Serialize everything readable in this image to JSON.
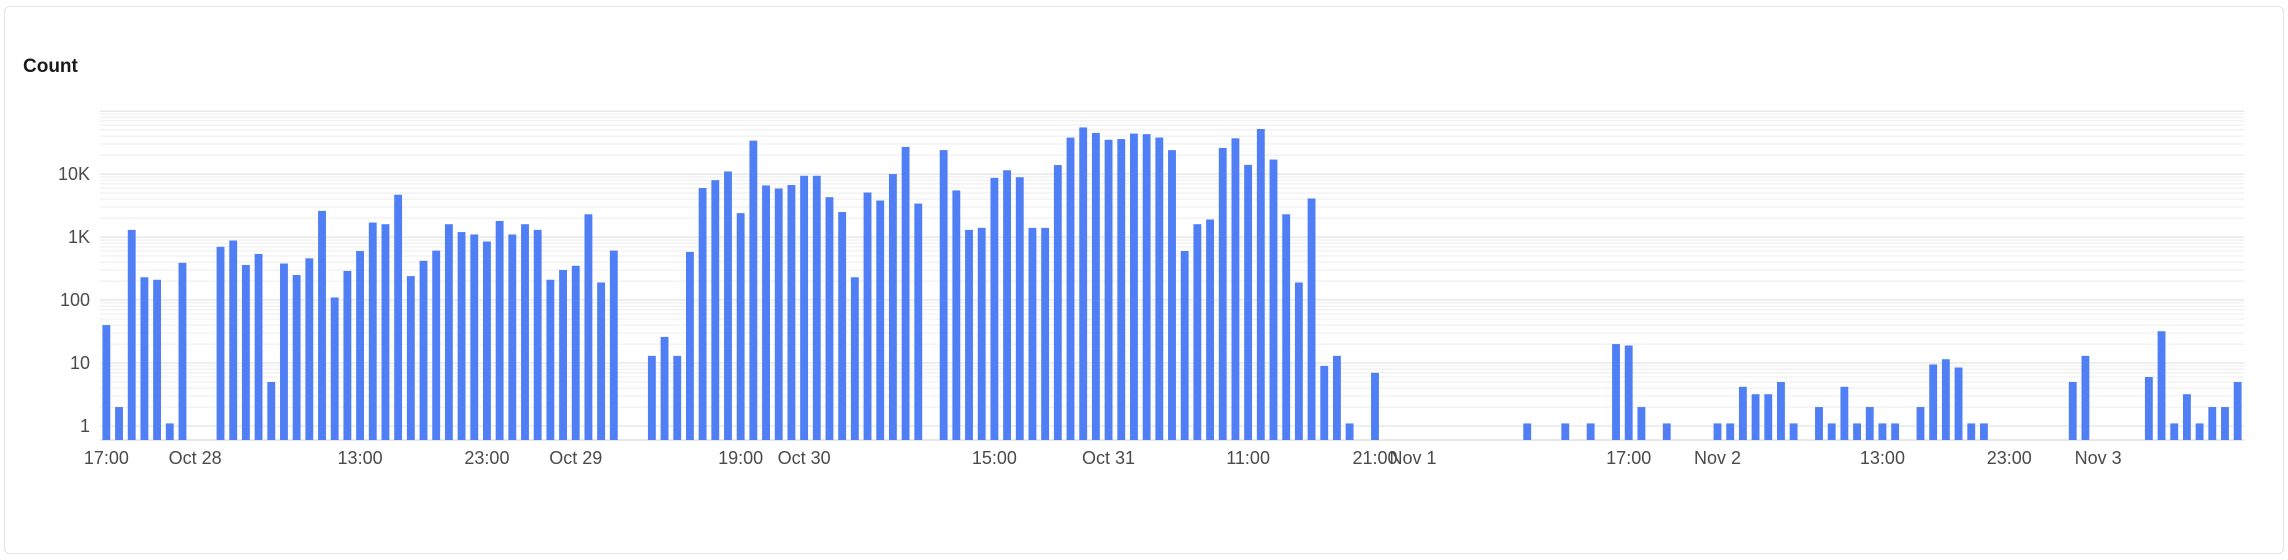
{
  "title": "Count",
  "chart_data": {
    "type": "bar",
    "title": "Count",
    "yscale": "log",
    "ylim": [
      0.6,
      150000
    ],
    "grid": true,
    "color": "#4f7ef5",
    "y_ticks": [
      {
        "value": 1,
        "label": "1"
      },
      {
        "value": 10,
        "label": "10"
      },
      {
        "value": 100,
        "label": "100"
      },
      {
        "value": 1000,
        "label": "1K"
      },
      {
        "value": 10000,
        "label": "10K"
      }
    ],
    "x_tick_labels": [
      {
        "label": "17:00",
        "at": 0
      },
      {
        "label": "Oct 28",
        "at": 7
      },
      {
        "label": "13:00",
        "at": 20
      },
      {
        "label": "23:00",
        "at": 30
      },
      {
        "label": "Oct 29",
        "at": 37
      },
      {
        "label": "19:00",
        "at": 50
      },
      {
        "label": "Oct 30",
        "at": 55
      },
      {
        "label": "15:00",
        "at": 70
      },
      {
        "label": "Oct 31",
        "at": 79
      },
      {
        "label": "11:00",
        "at": 90
      },
      {
        "label": "21:00",
        "at": 100
      },
      {
        "label": "Nov 1",
        "at": 103
      },
      {
        "label": "17:00",
        "at": 120
      },
      {
        "label": "Nov 2",
        "at": 127
      },
      {
        "label": "13:00",
        "at": 140
      },
      {
        "label": "23:00",
        "at": 150
      },
      {
        "label": "Nov 3",
        "at": 157
      }
    ],
    "values": [
      40,
      2,
      1300,
      230,
      210,
      1.1,
      390,
      0,
      0,
      700,
      880,
      360,
      540,
      5,
      380,
      250,
      460,
      2600,
      110,
      290,
      600,
      1700,
      1600,
      4700,
      240,
      420,
      610,
      1600,
      1200,
      1100,
      850,
      1800,
      1100,
      1600,
      1300,
      210,
      300,
      350,
      2300,
      190,
      610,
      0,
      0,
      13,
      26,
      13,
      580,
      6000,
      8000,
      11000,
      2400,
      34000,
      6600,
      5900,
      6700,
      9400,
      9400,
      4300,
      2500,
      230,
      5100,
      3800,
      10000,
      27000,
      3400,
      0,
      24000,
      5500,
      1300,
      1400,
      8700,
      11500,
      8900,
      1400,
      1400,
      13900,
      38000,
      55000,
      45000,
      35000,
      36000,
      44000,
      43000,
      38000,
      24000,
      600,
      1600,
      1900,
      26000,
      37000,
      14000,
      52000,
      17000,
      2300,
      190,
      4100,
      9,
      13,
      1.1,
      0,
      7,
      0,
      0,
      0,
      0,
      0,
      0,
      0,
      0,
      0,
      0,
      0,
      1.1,
      0,
      0,
      1.1,
      0,
      1.1,
      0,
      20,
      19,
      2,
      0,
      1.1,
      0,
      0,
      0,
      1.1,
      1.1,
      4.2,
      3.2,
      3.2,
      5,
      1.1,
      0,
      2,
      1.1,
      4.2,
      1.1,
      2,
      1.1,
      1.1,
      0,
      2,
      9.5,
      11.5,
      8.5,
      1.1,
      1.1,
      0,
      0,
      0,
      0,
      0,
      0,
      5,
      13,
      0,
      0,
      0,
      0,
      6,
      32,
      1.1,
      3.2,
      1.1,
      2,
      2,
      5
    ]
  }
}
